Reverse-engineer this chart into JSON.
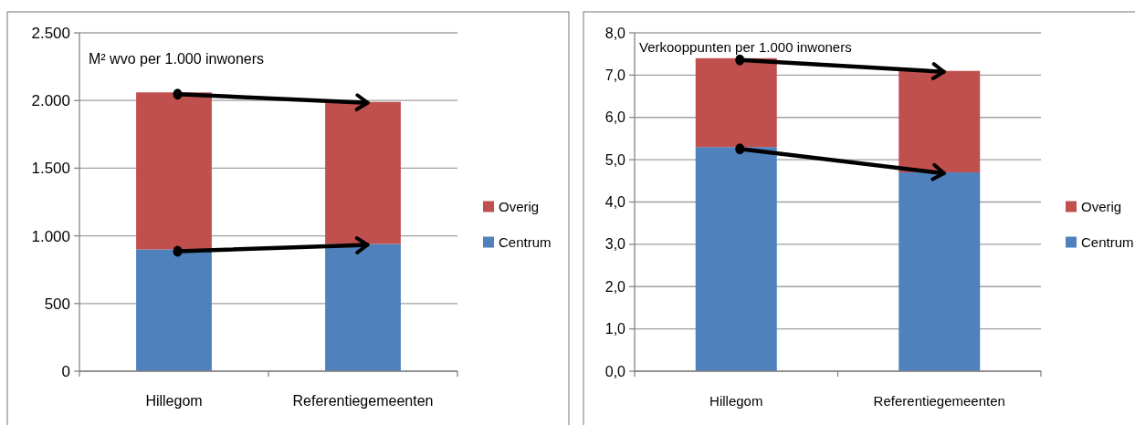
{
  "chart_data": [
    {
      "type": "bar",
      "stacked": true,
      "ylabel": "M² wvo per 1.000 inwoners",
      "categories": [
        "Hillegom",
        "Referentiegemeenten"
      ],
      "series": [
        {
          "name": "Centrum",
          "color": "#4f81bd",
          "values": [
            900,
            940
          ]
        },
        {
          "name": "Overig",
          "color": "#c0504d",
          "values": [
            1160,
            1050
          ]
        }
      ],
      "ylim": [
        0,
        2500
      ],
      "yticks": [
        0,
        500,
        {
          "value": 1000,
          "label": "1.000"
        },
        {
          "value": 1500,
          "label": "1.500"
        },
        {
          "value": 2000,
          "label": "2.000"
        },
        {
          "value": 2500,
          "label": "2.500"
        }
      ],
      "grid": "y",
      "legend": "right"
    },
    {
      "type": "bar",
      "stacked": true,
      "ylabel": "Verkooppunten per 1.000 inwoners",
      "categories": [
        "Hillegom",
        "Referentiegemeenten"
      ],
      "series": [
        {
          "name": "Centrum",
          "color": "#4f81bd",
          "values": [
            5.3,
            4.7
          ]
        },
        {
          "name": "Overig",
          "color": "#c0504d",
          "values": [
            2.1,
            2.4
          ]
        }
      ],
      "ylim": [
        0,
        8
      ],
      "yticks": [
        {
          "value": 0,
          "label": "0,0"
        },
        {
          "value": 1,
          "label": "1,0"
        },
        {
          "value": 2,
          "label": "2,0"
        },
        {
          "value": 3,
          "label": "3,0"
        },
        {
          "value": 4,
          "label": "4,0"
        },
        {
          "value": 5,
          "label": "5,0"
        },
        {
          "value": 6,
          "label": "6,0"
        },
        {
          "value": 7,
          "label": "7,0"
        },
        {
          "value": 8,
          "label": "8,0"
        }
      ],
      "grid": "y",
      "legend": "right"
    }
  ]
}
